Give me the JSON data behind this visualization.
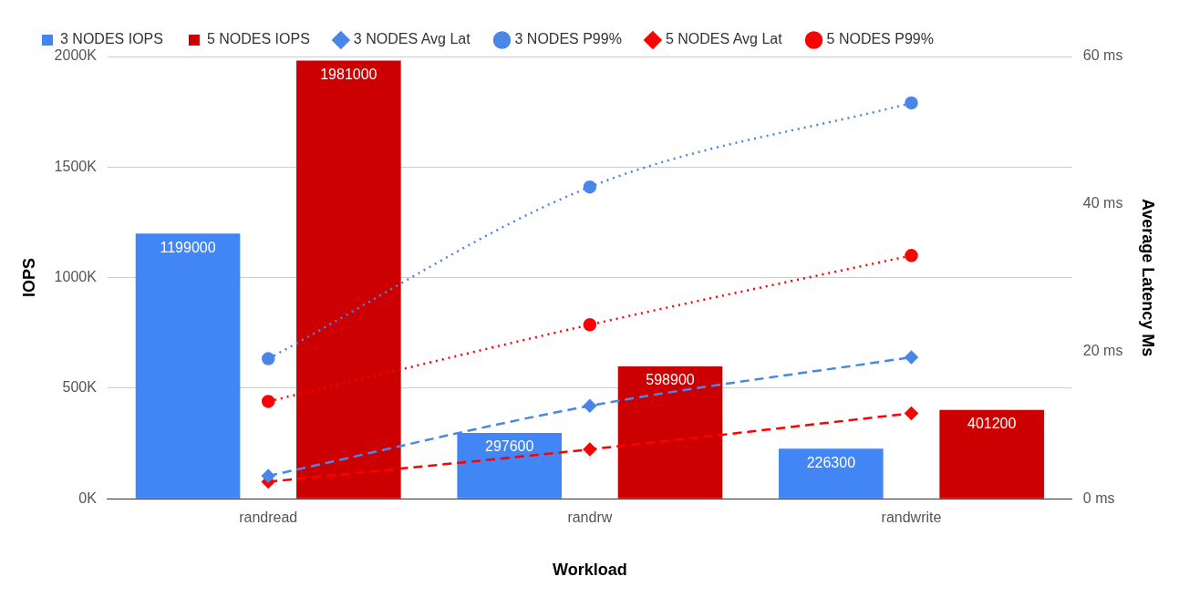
{
  "chart_data": {
    "type": "bar",
    "xlabel": "Workload",
    "ylabel": "IOPS",
    "y2label": "Average Latency Ms",
    "categories": [
      "randread",
      "randrw",
      "randwrite"
    ],
    "series": [
      {
        "name": "3 NODES IOPS",
        "color": "#4285f4",
        "values": [
          1199000,
          297600,
          226300
        ],
        "value_labels": [
          "1199000",
          "297600",
          "226300"
        ]
      },
      {
        "name": "5 NODES IOPS",
        "color": "#cc0000",
        "values": [
          1981000,
          598900,
          401200
        ],
        "value_labels": [
          "1981000",
          "598900",
          "401200"
        ]
      },
      {
        "name": "3 NODES Avg Lat",
        "type": "line",
        "axis": "y2",
        "color": "#4a86e8",
        "marker": "diamond",
        "line_style": "dashed",
        "values": [
          3.1,
          12.6,
          19.2
        ]
      },
      {
        "name": "3 NODES P99%",
        "type": "line",
        "axis": "y2",
        "color": "#4a86e8",
        "marker": "circle",
        "line_style": "dotted",
        "values": [
          19.0,
          42.3,
          53.7
        ]
      },
      {
        "name": "5 NODES Avg Lat",
        "type": "line",
        "axis": "y2",
        "color": "#ff0000",
        "marker": "diamond",
        "line_style": "dashed",
        "values": [
          2.3,
          6.7,
          11.6
        ]
      },
      {
        "name": "5 NODES P99%",
        "type": "line",
        "axis": "y2",
        "color": "#ff0000",
        "marker": "circle",
        "line_style": "dotted",
        "values": [
          13.2,
          23.6,
          33.0
        ]
      }
    ],
    "ylim": [
      0,
      2000000
    ],
    "yticks": [
      {
        "value": 0,
        "label": "0K"
      },
      {
        "value": 500000,
        "label": "500K"
      },
      {
        "value": 1000000,
        "label": "1000K"
      },
      {
        "value": 1500000,
        "label": "1500K"
      },
      {
        "value": 2000000,
        "label": "2000K"
      }
    ],
    "y2lim": [
      0,
      60
    ],
    "y2ticks": [
      {
        "value": 0,
        "label": "0 ms"
      },
      {
        "value": 20,
        "label": "20 ms"
      },
      {
        "value": 40,
        "label": "40 ms"
      },
      {
        "value": 60,
        "label": "60 ms"
      }
    ],
    "grid": "y",
    "legend": "top"
  }
}
